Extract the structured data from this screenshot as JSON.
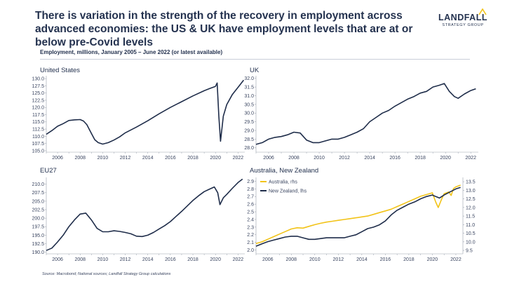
{
  "header": {
    "title": "There is variation in the strength of the recovery in employment across advanced economies: the US & UK have employment levels that are at or below pre-Covid levels",
    "subtitle": "Employment, millions, January 2005 – June 2022 (or latest available)"
  },
  "logo": {
    "name": "LANDFALL",
    "sub": "STRATEGY GROUP"
  },
  "source": "Source: Macrobond; National sources; Landfall Strategy Group calculations",
  "colors": {
    "navy": "#1f2d4a",
    "gold": "#f2c318"
  },
  "chart_data": [
    {
      "type": "line",
      "title": "United States",
      "xlim": [
        2005,
        2022.6
      ],
      "ylim": [
        104.5,
        131
      ],
      "xticks": [
        2006,
        2008,
        2010,
        2012,
        2014,
        2016,
        2018,
        2020,
        2022
      ],
      "yticks": [
        105.0,
        107.5,
        110.0,
        112.5,
        115.0,
        117.5,
        120.0,
        122.5,
        125.0,
        127.5,
        130.0
      ],
      "series": [
        {
          "color": "#1f2d4a",
          "x": [
            2005,
            2005.5,
            2006,
            2006.5,
            2007,
            2007.5,
            2008,
            2008.3,
            2008.6,
            2009,
            2009.3,
            2009.6,
            2010,
            2010.5,
            2011,
            2011.5,
            2012,
            2013,
            2014,
            2015,
            2016,
            2017,
            2018,
            2019,
            2019.5,
            2020.0,
            2020.15,
            2020.3,
            2020.45,
            2020.7,
            2021,
            2021.5,
            2022,
            2022.5
          ],
          "y": [
            110.7,
            112.0,
            113.5,
            114.4,
            115.5,
            115.7,
            115.8,
            115.3,
            114.0,
            111.0,
            108.8,
            107.8,
            107.3,
            107.8,
            108.7,
            109.8,
            111.2,
            113.2,
            115.4,
            117.8,
            120.0,
            122.0,
            124.0,
            125.8,
            126.6,
            127.3,
            128.5,
            117.0,
            108.3,
            117.0,
            121.0,
            124.5,
            127.0,
            129.5
          ]
        }
      ]
    },
    {
      "type": "line",
      "title": "UK",
      "xlim": [
        2005,
        2022.6
      ],
      "ylim": [
        27.75,
        32.15
      ],
      "xticks": [
        2006,
        2008,
        2010,
        2012,
        2014,
        2016,
        2018,
        2020,
        2022
      ],
      "yticks": [
        28.0,
        28.5,
        29.0,
        29.5,
        30.0,
        30.5,
        31.0,
        31.5,
        32.0
      ],
      "series": [
        {
          "color": "#1f2d4a",
          "x": [
            2005,
            2005.5,
            2006,
            2006.5,
            2007,
            2007.5,
            2008,
            2008.5,
            2009,
            2009.5,
            2010,
            2010.5,
            2011,
            2011.5,
            2012,
            2012.5,
            2013,
            2013.5,
            2014,
            2014.5,
            2015,
            2015.5,
            2016,
            2016.5,
            2017,
            2017.5,
            2018,
            2018.5,
            2019,
            2019.5,
            2019.9,
            2020.3,
            2020.7,
            2021,
            2021.5,
            2022,
            2022.4
          ],
          "y": [
            28.2,
            28.3,
            28.5,
            28.6,
            28.65,
            28.75,
            28.9,
            28.85,
            28.45,
            28.3,
            28.3,
            28.4,
            28.5,
            28.5,
            28.6,
            28.75,
            28.9,
            29.1,
            29.5,
            29.75,
            30.0,
            30.15,
            30.4,
            30.6,
            30.8,
            30.95,
            31.15,
            31.25,
            31.5,
            31.6,
            31.7,
            31.25,
            30.95,
            30.85,
            31.1,
            31.3,
            31.4
          ]
        }
      ]
    },
    {
      "type": "line",
      "title": "EU27",
      "xlim": [
        2005,
        2022.6
      ],
      "ylim": [
        189.5,
        212
      ],
      "xticks": [
        2006,
        2008,
        2010,
        2012,
        2014,
        2016,
        2018,
        2020,
        2022
      ],
      "yticks": [
        190.0,
        192.5,
        195.0,
        197.5,
        200.0,
        202.5,
        205.0,
        207.5,
        210.0
      ],
      "series": [
        {
          "color": "#1f2d4a",
          "x": [
            2005,
            2005.5,
            2006,
            2006.5,
            2007,
            2007.5,
            2008,
            2008.5,
            2009,
            2009.5,
            2010,
            2010.5,
            2011,
            2011.5,
            2012,
            2012.5,
            2013,
            2013.5,
            2014,
            2014.5,
            2015,
            2015.5,
            2016,
            2016.5,
            2017,
            2017.5,
            2018,
            2018.5,
            2019,
            2019.5,
            2019.9,
            2020.2,
            2020.4,
            2020.7,
            2021,
            2021.5,
            2022,
            2022.4
          ],
          "y": [
            190.5,
            191.2,
            193.0,
            195.0,
            197.5,
            199.5,
            201.2,
            201.5,
            199.5,
            197.0,
            196.0,
            196.0,
            196.3,
            196.1,
            195.8,
            195.4,
            194.7,
            194.6,
            195.0,
            195.8,
            196.8,
            197.8,
            199.0,
            200.5,
            202.0,
            203.6,
            205.2,
            206.6,
            207.8,
            208.6,
            209.2,
            207.5,
            204.0,
            206.0,
            207.0,
            208.8,
            210.5,
            211.5
          ]
        }
      ]
    },
    {
      "type": "line",
      "title": "Australia, New Zealand",
      "xlim": [
        2005,
        2022.6
      ],
      "ylim": [
        1.95,
        2.95
      ],
      "yticks": [
        2.0,
        2.1,
        2.2,
        2.3,
        2.4,
        2.5,
        2.6,
        2.7,
        2.8,
        2.9
      ],
      "ylim_right": [
        9.3,
        13.75
      ],
      "yticks_right": [
        9.5,
        10.0,
        10.5,
        11.0,
        11.5,
        12.0,
        12.5,
        13.0,
        13.5
      ],
      "xticks": [
        2006,
        2008,
        2010,
        2012,
        2014,
        2016,
        2018,
        2020,
        2022
      ],
      "legend": "top-left",
      "series": [
        {
          "name": "Australia, rhs",
          "axis": "right",
          "color": "#f2c318",
          "x": [
            2005,
            2005.5,
            2006,
            2006.5,
            2007,
            2007.5,
            2008,
            2008.5,
            2009,
            2009.5,
            2010,
            2010.5,
            2011,
            2011.5,
            2012,
            2012.5,
            2013,
            2013.5,
            2014,
            2014.5,
            2015,
            2015.5,
            2016,
            2016.5,
            2017,
            2017.5,
            2018,
            2018.5,
            2019,
            2019.5,
            2020.0,
            2020.3,
            2020.5,
            2020.8,
            2021,
            2021.4,
            2021.6,
            2021.8,
            2022,
            2022.4
          ],
          "y": [
            9.9,
            10.0,
            10.15,
            10.3,
            10.45,
            10.6,
            10.75,
            10.82,
            10.8,
            10.9,
            11.0,
            11.08,
            11.15,
            11.2,
            11.25,
            11.3,
            11.35,
            11.4,
            11.45,
            11.5,
            11.6,
            11.7,
            11.8,
            11.9,
            12.05,
            12.2,
            12.35,
            12.5,
            12.65,
            12.75,
            12.85,
            12.3,
            12.0,
            12.5,
            12.8,
            12.9,
            12.7,
            13.1,
            13.2,
            13.3
          ]
        },
        {
          "name": "New Zealand, lhs",
          "axis": "left",
          "color": "#1f2d4a",
          "x": [
            2005,
            2005.5,
            2006,
            2006.5,
            2007,
            2007.5,
            2008,
            2008.5,
            2009,
            2009.5,
            2010,
            2010.5,
            2011,
            2011.5,
            2012,
            2012.5,
            2013,
            2013.5,
            2014,
            2014.5,
            2015,
            2015.5,
            2016,
            2016.5,
            2017,
            2017.5,
            2018,
            2018.5,
            2019,
            2019.5,
            2020.0,
            2020.3,
            2020.6,
            2021,
            2021.5,
            2022,
            2022.4
          ],
          "y": [
            2.05,
            2.08,
            2.11,
            2.13,
            2.15,
            2.17,
            2.18,
            2.18,
            2.16,
            2.14,
            2.14,
            2.15,
            2.16,
            2.16,
            2.16,
            2.16,
            2.18,
            2.2,
            2.24,
            2.28,
            2.3,
            2.33,
            2.38,
            2.46,
            2.52,
            2.56,
            2.6,
            2.63,
            2.67,
            2.7,
            2.72,
            2.7,
            2.68,
            2.72,
            2.76,
            2.8,
            2.82
          ]
        }
      ]
    }
  ]
}
